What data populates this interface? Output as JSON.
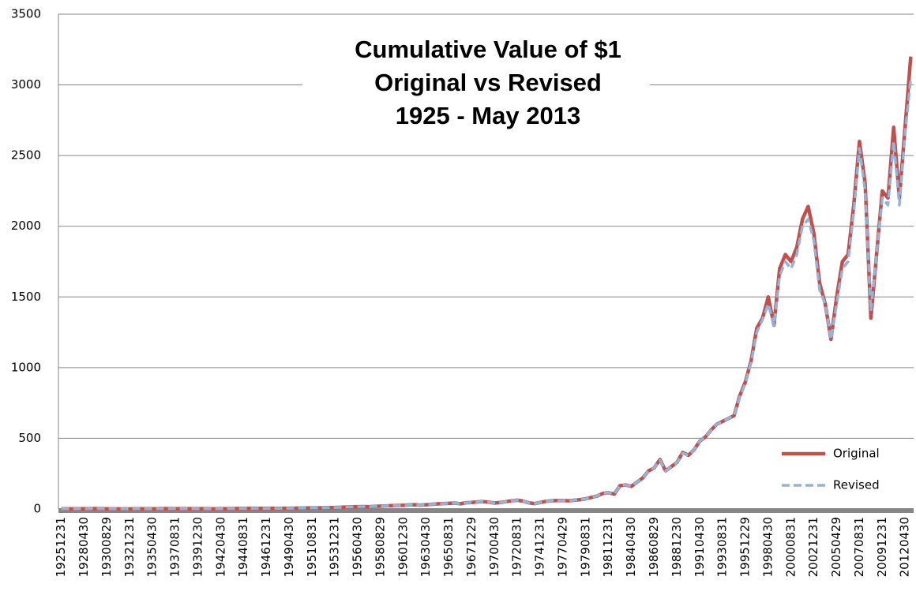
{
  "chart_data": {
    "type": "line",
    "title": [
      "Cumulative Value of $1",
      "Original vs Revised",
      "1925 - May 2013"
    ],
    "categories": [
      "19251231",
      null,
      null,
      null,
      "19280430",
      null,
      null,
      null,
      "19300829",
      null,
      null,
      null,
      "19321231",
      null,
      null,
      null,
      "19350430",
      null,
      null,
      null,
      "19370831",
      null,
      null,
      null,
      "19391230",
      null,
      null,
      null,
      "19420430",
      null,
      null,
      null,
      "19440831",
      null,
      null,
      null,
      "19461231",
      null,
      null,
      null,
      "19490430",
      null,
      null,
      null,
      "19510831",
      null,
      null,
      null,
      "19531231",
      null,
      null,
      null,
      "19560430",
      null,
      null,
      null,
      "19580829",
      null,
      null,
      null,
      "19601230",
      null,
      null,
      null,
      "19630430",
      null,
      null,
      null,
      "19650831",
      null,
      null,
      null,
      "19671229",
      null,
      null,
      null,
      "19700430",
      null,
      null,
      null,
      "19720831",
      null,
      null,
      null,
      "19741231",
      null,
      null,
      null,
      "19770429",
      null,
      null,
      null,
      "19790831",
      null,
      null,
      null,
      "19811231",
      null,
      null,
      null,
      "19840430",
      null,
      null,
      null,
      "19860829",
      null,
      null,
      null,
      "19881230",
      null,
      null,
      null,
      "19910430",
      null,
      null,
      null,
      "19930831",
      null,
      null,
      null,
      "19951229",
      null,
      null,
      null,
      "19980430",
      null,
      null,
      null,
      "20000831",
      null,
      null,
      null,
      "20021231",
      null,
      null,
      null,
      "20050429",
      null,
      null,
      null,
      "20070831",
      null,
      null,
      null,
      "20091231",
      null,
      null,
      null,
      "20120430",
      null
    ],
    "series": [
      {
        "name": "Original",
        "color": "#c0504d",
        "dash": false,
        "values": [
          1,
          1.1,
          1.3,
          1.6,
          2,
          2.4,
          2.6,
          1.9,
          1.4,
          0.9,
          0.8,
          0.8,
          0.9,
          1.2,
          1.3,
          1.5,
          1.7,
          2.2,
          2.6,
          2.8,
          2.0,
          1.8,
          2.0,
          2.1,
          1.9,
          1.8,
          1.6,
          1.7,
          2.1,
          2.4,
          2.9,
          3.2,
          3.7,
          4.3,
          4.8,
          4.5,
          4.4,
          4.6,
          4.5,
          4.7,
          5.2,
          5.8,
          6.4,
          7,
          7.6,
          8,
          8.6,
          9.5,
          10.5,
          12,
          14,
          15,
          16,
          17,
          16,
          18,
          20,
          22,
          24,
          25,
          26,
          29,
          30,
          27,
          30,
          33,
          36,
          38,
          40,
          42,
          37,
          44,
          46,
          50,
          52,
          48,
          42,
          46,
          52,
          58,
          62,
          56,
          44,
          38,
          46,
          54,
          58,
          60,
          60,
          58,
          62,
          66,
          72,
          82,
          92,
          110,
          115,
          105,
          165,
          170,
          160,
          190,
          220,
          270,
          290,
          350,
          270,
          300,
          330,
          400,
          380,
          420,
          480,
          510,
          560,
          600,
          620,
          640,
          660,
          800,
          900,
          1050,
          1280,
          1350,
          1500,
          1300,
          1700,
          1800,
          1750,
          1850,
          2050,
          2140,
          1950,
          1600,
          1450,
          1200,
          1500,
          1750,
          1800,
          2150,
          2600,
          2300,
          1350,
          1800,
          2250,
          2200,
          2700,
          2200,
          2700,
          3200
        ]
      },
      {
        "name": "Revised",
        "color": "#95b3d7",
        "dash": true,
        "values": [
          1,
          1.1,
          1.3,
          1.6,
          2,
          2.4,
          2.6,
          1.9,
          1.4,
          0.9,
          0.8,
          0.8,
          0.9,
          1.2,
          1.3,
          1.5,
          1.7,
          2.2,
          2.6,
          2.8,
          2.0,
          1.8,
          2.0,
          2.1,
          1.9,
          1.8,
          1.6,
          1.7,
          2.1,
          2.4,
          2.9,
          3.2,
          3.7,
          4.3,
          4.8,
          4.5,
          4.4,
          4.6,
          4.5,
          4.7,
          5.2,
          5.8,
          6.4,
          7,
          7.6,
          8,
          8.6,
          9.5,
          10.5,
          12,
          14,
          15,
          16,
          17,
          16,
          18,
          20,
          22,
          24,
          25,
          26,
          29,
          30,
          27,
          30,
          33,
          36,
          38,
          40,
          42,
          37,
          44,
          46,
          50,
          52,
          48,
          42,
          46,
          52,
          58,
          62,
          56,
          44,
          38,
          46,
          54,
          58,
          60,
          60,
          58,
          62,
          66,
          72,
          82,
          92,
          110,
          115,
          105,
          165,
          170,
          160,
          190,
          220,
          270,
          290,
          345,
          270,
          300,
          330,
          395,
          380,
          420,
          480,
          510,
          560,
          600,
          620,
          640,
          660,
          790,
          890,
          1040,
          1250,
          1340,
          1450,
          1300,
          1650,
          1750,
          1700,
          1800,
          2000,
          2050,
          1900,
          1550,
          1450,
          1200,
          1450,
          1700,
          1750,
          2100,
          2550,
          2250,
          1400,
          1800,
          2200,
          2150,
          2600,
          2150,
          2650,
          3050
        ]
      }
    ],
    "ylim": [
      0,
      3500
    ],
    "yticks": [
      0,
      500,
      1000,
      1500,
      2000,
      2500,
      3000,
      3500
    ],
    "grid": true,
    "legend": "lower right"
  }
}
